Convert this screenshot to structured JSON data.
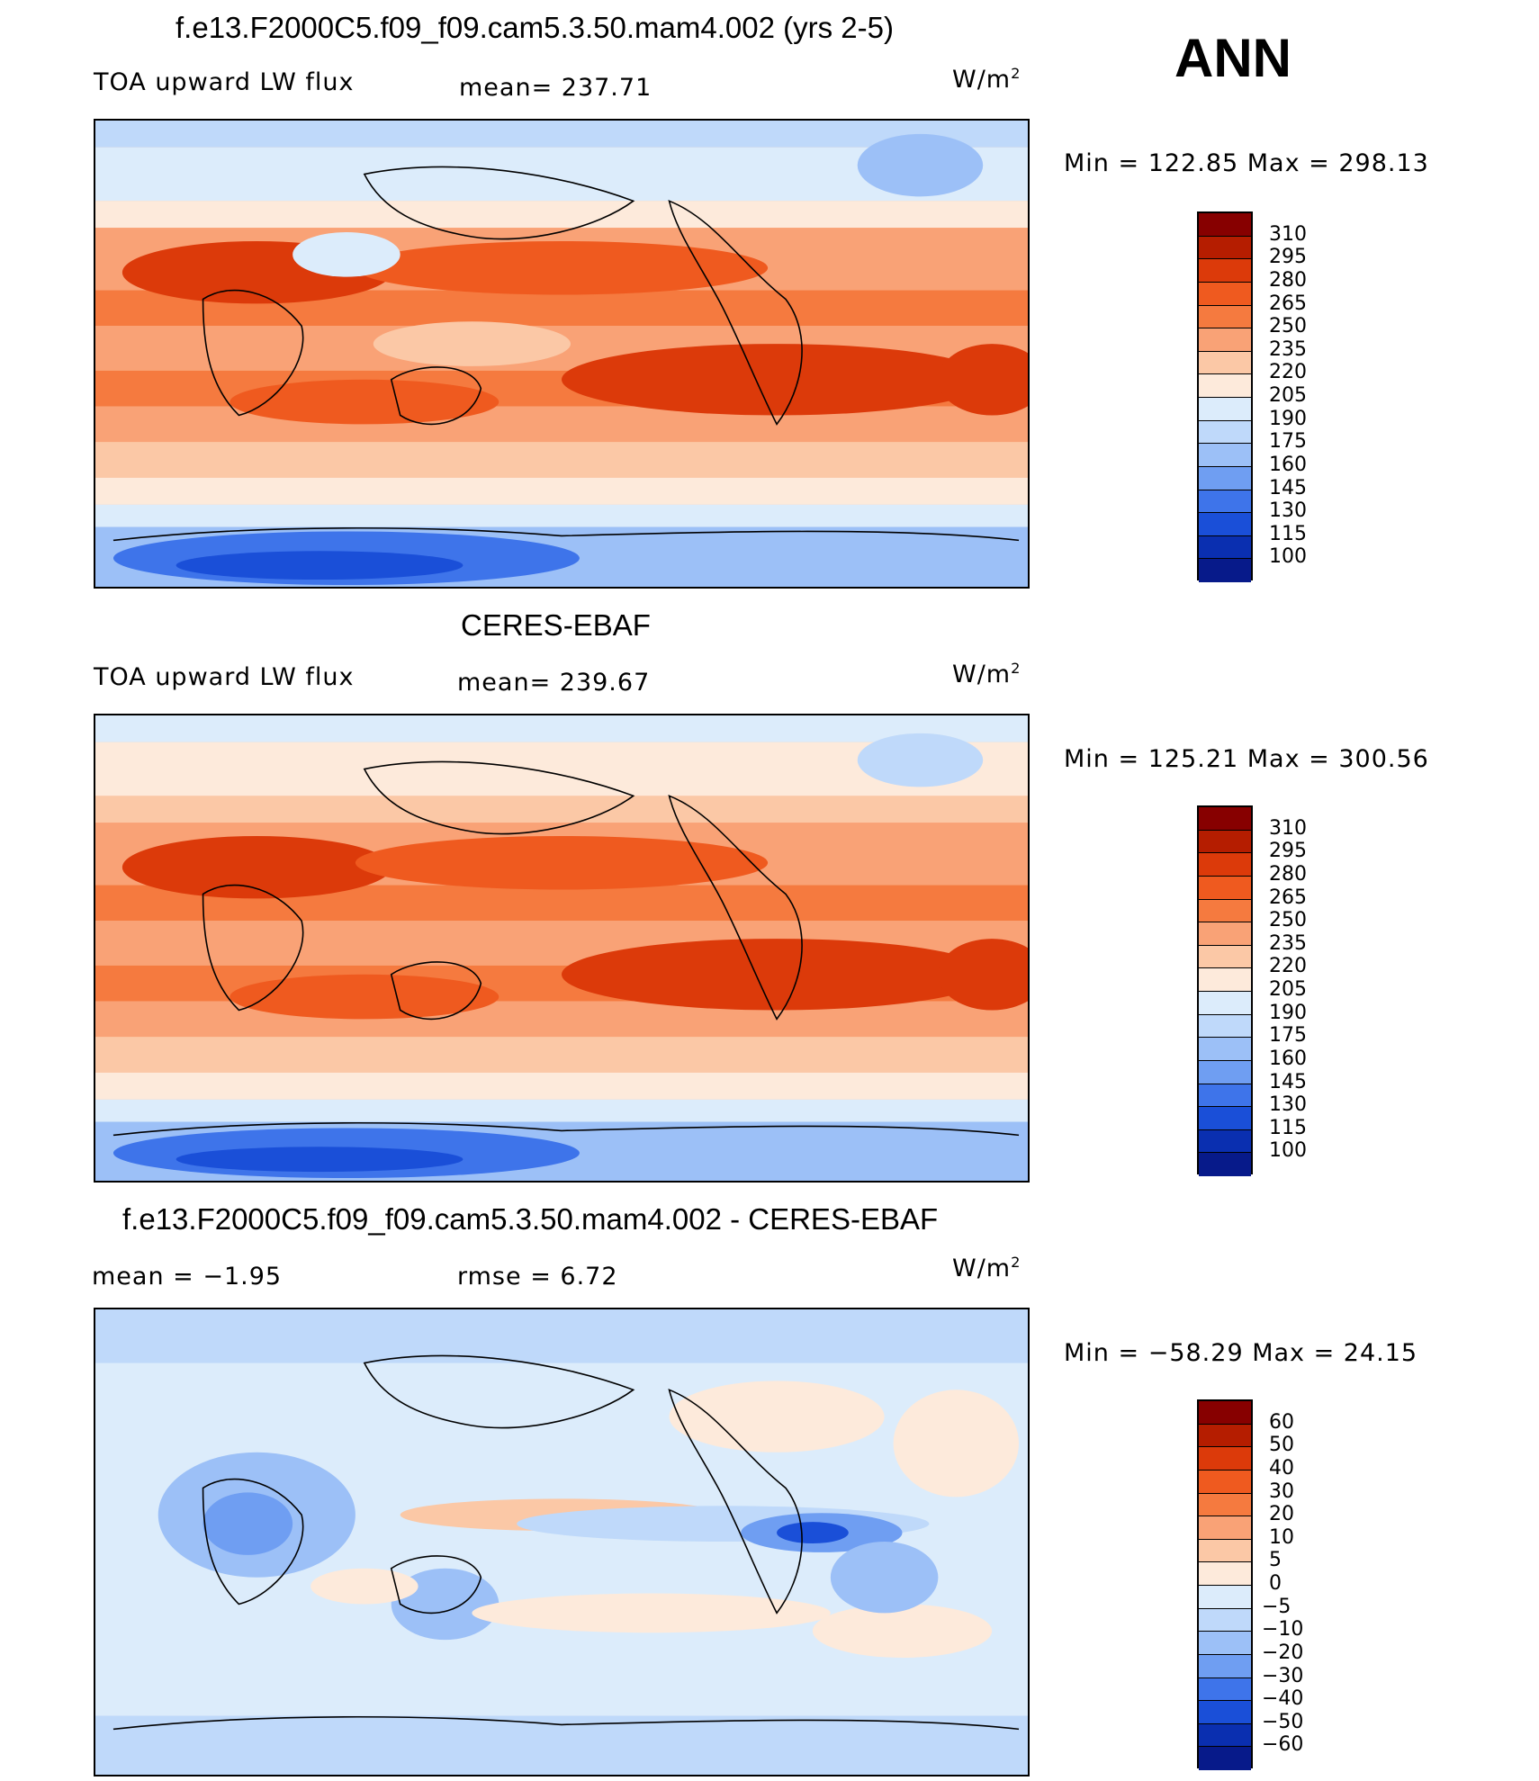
{
  "season": "ANN",
  "units_base": "W/m",
  "units_exp": "2",
  "panels": [
    {
      "title": "f.e13.F2000C5.f09_f09.cam5.3.50.mam4.002 (yrs 2-5)",
      "left_label": "TOA upward LW flux",
      "center_label": "mean= 237.71",
      "minmax": "Min = 122.85 Max = 298.13",
      "colorbar_labels": [
        "310",
        "295",
        "280",
        "265",
        "250",
        "235",
        "220",
        "205",
        "190",
        "175",
        "160",
        "145",
        "130",
        "115",
        "100"
      ]
    },
    {
      "title": "CERES-EBAF",
      "left_label": "TOA upward LW flux",
      "center_label": "mean= 239.67",
      "minmax": "Min = 125.21 Max = 300.56",
      "colorbar_labels": [
        "310",
        "295",
        "280",
        "265",
        "250",
        "235",
        "220",
        "205",
        "190",
        "175",
        "160",
        "145",
        "130",
        "115",
        "100"
      ]
    },
    {
      "title": "f.e13.F2000C5.f09_f09.cam5.3.50.mam4.002 - CERES-EBAF",
      "left_label": "mean =  −1.95",
      "center_label": "rmse =   6.72",
      "minmax": "Min = −58.29 Max =  24.15",
      "colorbar_labels": [
        "60",
        "50",
        "40",
        "30",
        "20",
        "10",
        "5",
        "0",
        "−5",
        "−10",
        "−20",
        "−30",
        "−40",
        "−50",
        "−60"
      ]
    }
  ],
  "colors": {
    "abs_scale": [
      "#870000",
      "#b51d00",
      "#dc3a0a",
      "#ef5a1f",
      "#f57a3f",
      "#f9a276",
      "#fbc8a6",
      "#fdeadb",
      "#dcecfb",
      "#bfd9fa",
      "#9cc0f7",
      "#6f9ef2",
      "#3e74ea",
      "#1a4fd8",
      "#0a2fb0",
      "#071a8a"
    ],
    "diff_scale": [
      "#870000",
      "#b51d00",
      "#dc3a0a",
      "#ef5a1f",
      "#f57a3f",
      "#f9a276",
      "#fbc8a6",
      "#fdeadb",
      "#dcecfb",
      "#bfd9fa",
      "#9cc0f7",
      "#6f9ef2",
      "#3e74ea",
      "#1a4fd8",
      "#0a2fb0",
      "#071a8a"
    ]
  }
}
